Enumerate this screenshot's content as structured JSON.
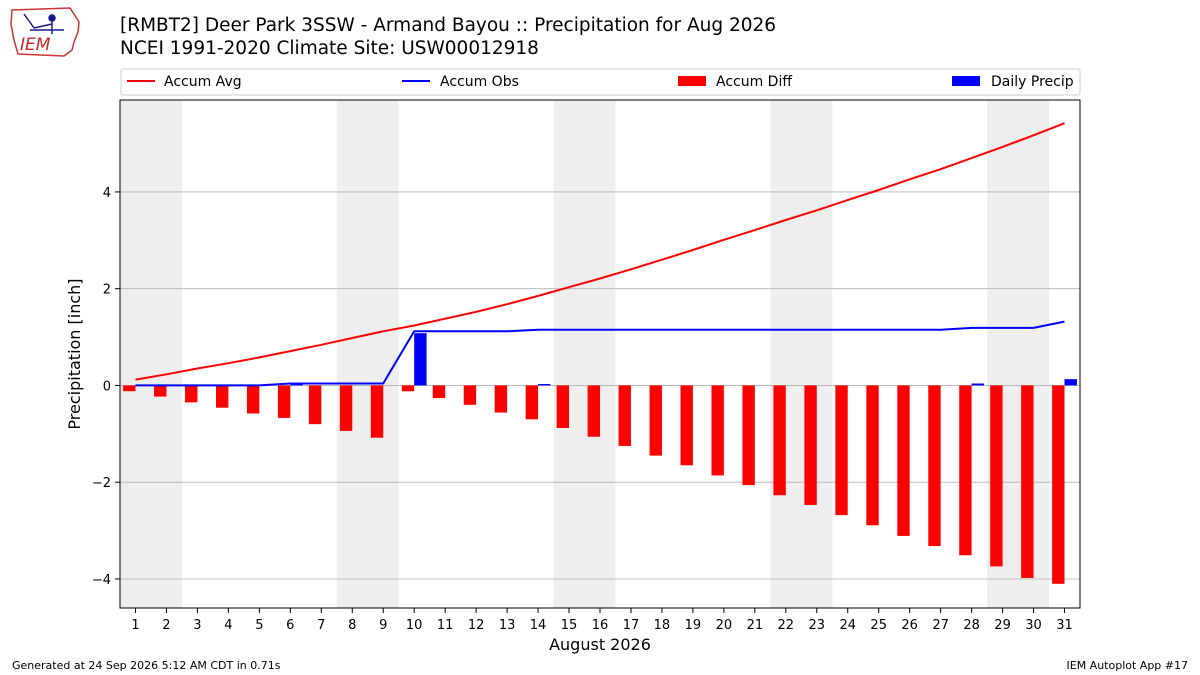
{
  "logo": {
    "text": "IEM"
  },
  "header": {
    "title": "[RMBT2] Deer Park 3SSW - Armand Bayou :: Precipitation for Aug 2026",
    "subtitle": "NCEI 1991-2020 Climate Site: USW00012918"
  },
  "footer": {
    "generated": "Generated at 24 Sep 2026 5:12 AM CDT in 0.71s",
    "app": "IEM Autoplot App #17"
  },
  "colors": {
    "accum_avg": "#ff0000",
    "accum_obs": "#0000ff",
    "accum_diff": "#ff0000",
    "daily_precip": "#0000ff",
    "weekend_shade": "#eeeeee",
    "grid": "#b0b0b0"
  },
  "chart_data": {
    "type": "bar",
    "title": "[RMBT2] Deer Park 3SSW - Armand Bayou :: Precipitation for Aug 2026",
    "subtitle": "NCEI 1991-2020 Climate Site: USW00012918",
    "xlabel": "August 2026",
    "ylabel": "Precipitation [inch]",
    "x": [
      1,
      2,
      3,
      4,
      5,
      6,
      7,
      8,
      9,
      10,
      11,
      12,
      13,
      14,
      15,
      16,
      17,
      18,
      19,
      20,
      21,
      22,
      23,
      24,
      25,
      26,
      27,
      28,
      29,
      30,
      31
    ],
    "xlim": [
      0.5,
      31.5
    ],
    "ylim": [
      -4.6,
      5.9
    ],
    "yticks": [
      -4,
      -2,
      0,
      2,
      4
    ],
    "grid": "horizontal",
    "legend_position": "top",
    "weekend_shading": [
      [
        1,
        2
      ],
      [
        8,
        9
      ],
      [
        15,
        16
      ],
      [
        22,
        23
      ],
      [
        29,
        30
      ]
    ],
    "series": [
      {
        "name": "Accum Avg",
        "kind": "line",
        "values": [
          0.12,
          0.23,
          0.35,
          0.46,
          0.58,
          0.71,
          0.84,
          0.98,
          1.12,
          1.24,
          1.38,
          1.52,
          1.68,
          1.85,
          2.03,
          2.21,
          2.4,
          2.6,
          2.8,
          3.01,
          3.21,
          3.42,
          3.62,
          3.83,
          4.04,
          4.26,
          4.47,
          4.7,
          4.93,
          5.17,
          5.42
        ]
      },
      {
        "name": "Accum Obs",
        "kind": "line",
        "values": [
          0.0,
          0.0,
          0.0,
          0.0,
          0.0,
          0.04,
          0.04,
          0.04,
          0.04,
          1.12,
          1.12,
          1.12,
          1.12,
          1.15,
          1.15,
          1.15,
          1.15,
          1.15,
          1.15,
          1.15,
          1.15,
          1.15,
          1.15,
          1.15,
          1.15,
          1.15,
          1.15,
          1.19,
          1.19,
          1.19,
          1.32
        ]
      },
      {
        "name": "Accum Diff",
        "kind": "bar",
        "values": [
          -0.12,
          -0.23,
          -0.35,
          -0.46,
          -0.58,
          -0.67,
          -0.8,
          -0.94,
          -1.08,
          -0.12,
          -0.26,
          -0.4,
          -0.56,
          -0.7,
          -0.88,
          -1.06,
          -1.25,
          -1.45,
          -1.65,
          -1.86,
          -2.06,
          -2.27,
          -2.47,
          -2.68,
          -2.89,
          -3.11,
          -3.32,
          -3.51,
          -3.74,
          -3.98,
          -4.1
        ]
      },
      {
        "name": "Daily Precip",
        "kind": "bar",
        "values": [
          0,
          0,
          0,
          0,
          0,
          0.04,
          0,
          0,
          0,
          1.08,
          0,
          0,
          0,
          0.03,
          0,
          0,
          0,
          0,
          0,
          0,
          0,
          0,
          0,
          0,
          0,
          0,
          0,
          0.04,
          0,
          0,
          0.13
        ]
      }
    ]
  }
}
